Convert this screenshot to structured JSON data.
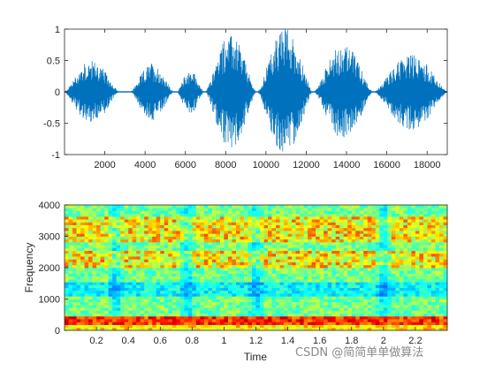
{
  "chart_data": [
    {
      "type": "line",
      "title": "",
      "xlabel": "",
      "ylabel": "",
      "xlim": [
        1,
        19000
      ],
      "ylim": [
        -1,
        1
      ],
      "xticks": [
        2000,
        4000,
        6000,
        8000,
        10000,
        12000,
        14000,
        16000,
        18000
      ],
      "yticks": [
        -1,
        -0.5,
        0,
        0.5,
        1
      ],
      "xtick_labels": [
        "2000",
        "4000",
        "6000",
        "8000",
        "10000",
        "12000",
        "14000",
        "16000",
        "18000"
      ],
      "ytick_labels": [
        "-1",
        "-0.5",
        "0",
        "0.5",
        "1"
      ],
      "line_color": "#0072bd",
      "grid": false,
      "segments": [
        {
          "start": 1,
          "end": 2700,
          "peak": 0.5
        },
        {
          "start": 3300,
          "end": 5400,
          "peak": 0.45
        },
        {
          "start": 5600,
          "end": 6900,
          "peak": 0.35
        },
        {
          "start": 7000,
          "end": 9500,
          "peak": 0.9
        },
        {
          "start": 9600,
          "end": 12300,
          "peak": 1.0
        },
        {
          "start": 12400,
          "end": 15300,
          "peak": 0.75
        },
        {
          "start": 15400,
          "end": 19000,
          "peak": 0.6
        }
      ]
    },
    {
      "type": "heatmap",
      "title": "",
      "xlabel": "Time",
      "ylabel": "Frequency",
      "xlim": [
        0,
        2.4
      ],
      "ylim": [
        0,
        4000
      ],
      "xticks": [
        0.2,
        0.4,
        0.6,
        0.8,
        1,
        1.2,
        1.4,
        1.6,
        1.8,
        2,
        2.2
      ],
      "yticks": [
        0,
        1000,
        2000,
        3000,
        4000
      ],
      "xtick_labels": [
        "0.2",
        "0.4",
        "0.6",
        "0.8",
        "1",
        "1.2",
        "1.4",
        "1.6",
        "1.8",
        "2",
        "2.2"
      ],
      "ytick_labels": [
        "0",
        "1000",
        "2000",
        "3000",
        "4000"
      ],
      "colormap": "jet",
      "grid": false,
      "high_energy_bands_hz": [
        [
          0,
          400
        ],
        [
          2000,
          2500
        ],
        [
          2800,
          3600
        ]
      ],
      "low_energy_bands_hz": [
        [
          1100,
          1500
        ]
      ],
      "pauses_s": [
        0.32,
        0.77,
        1.2,
        2.0
      ]
    }
  ],
  "watermark": "CSDN @简简单单做算法"
}
